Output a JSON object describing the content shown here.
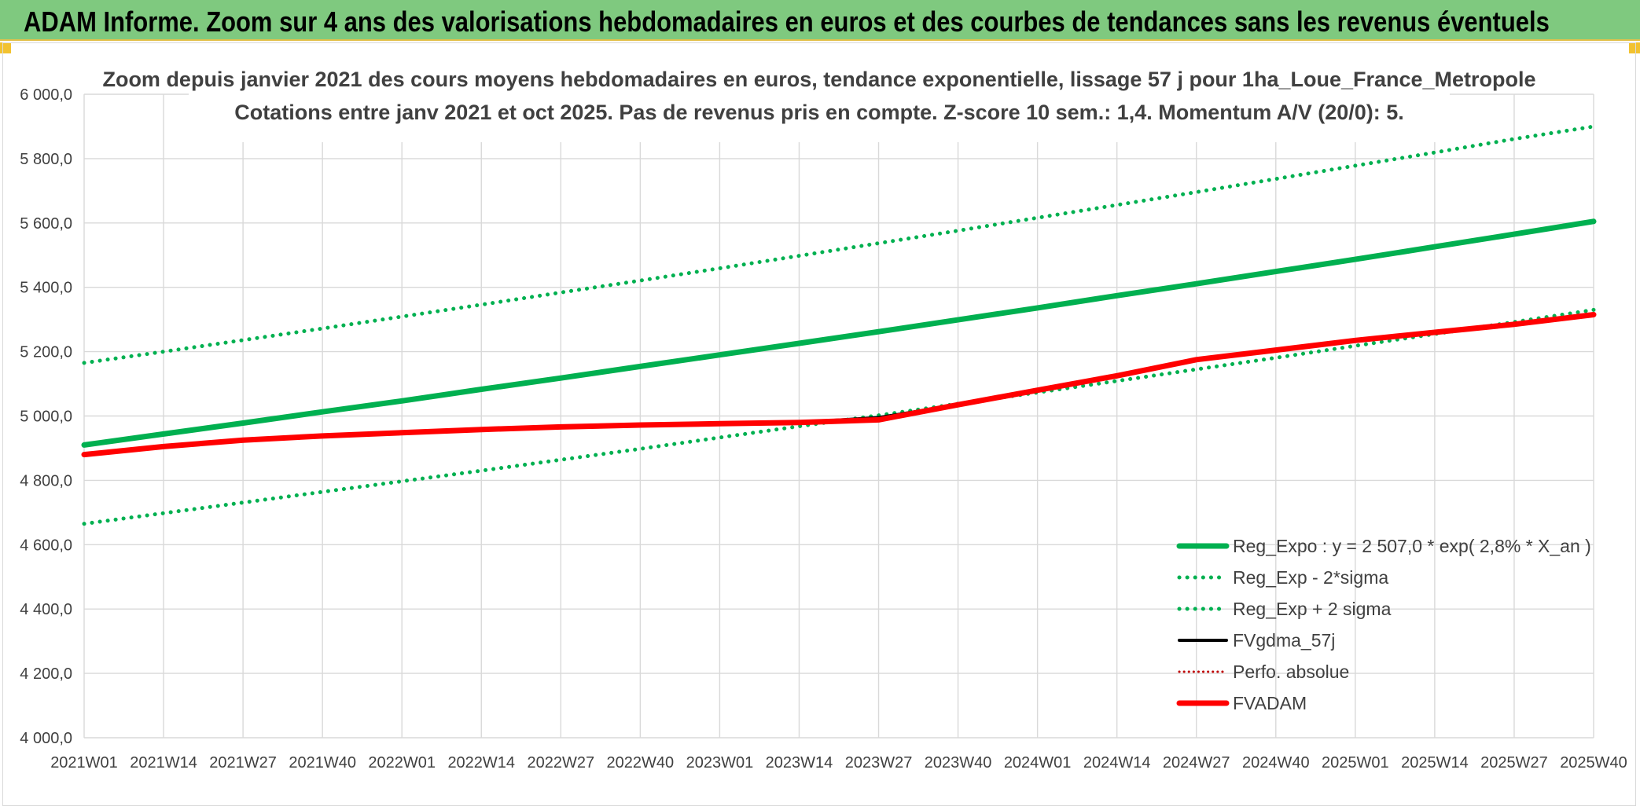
{
  "banner": {
    "title": "ADAM Informe. Zoom sur 4 ans des valorisations hebdomadaires en euros et des courbes de tendances sans les revenus éventuels"
  },
  "colors": {
    "banner_bg": "#7fc97f",
    "green": "#00b050",
    "red": "#ff0000",
    "black": "#000000",
    "grid": "#d9d9d9",
    "text": "#404040"
  },
  "chart_data": {
    "type": "line",
    "title_lines": [
      "Zoom depuis janvier 2021 des cours moyens hebdomadaires en euros, tendance exponentielle, lissage 57 j pour 1ha_Loue_France_Metropole",
      "Cotations entre janv 2021 et oct 2025. Pas de revenus pris en compte. Z-score 10 sem.: 1,4. Momentum A/V (20/0): 5."
    ],
    "xlabel": "",
    "ylabel": "",
    "ylim": [
      4000,
      6000
    ],
    "grid": true,
    "legend_position": "bottom-right",
    "y_ticks": [
      "6 000,0",
      "5 800,0",
      "5 600,0",
      "5 400,0",
      "5 200,0",
      "5 000,0",
      "4 800,0",
      "4 600,0",
      "4 400,0",
      "4 200,0",
      "4 000,0"
    ],
    "x": [
      "2021W01",
      "2021W14",
      "2021W27",
      "2021W40",
      "2022W01",
      "2022W14",
      "2022W27",
      "2022W40",
      "2023W01",
      "2023W14",
      "2023W27",
      "2023W40",
      "2024W01",
      "2024W14",
      "2024W27",
      "2024W40",
      "2025W01",
      "2025W14",
      "2025W27",
      "2025W40"
    ],
    "series": [
      {
        "name": "Reg_Expo : y = 2 507,0 * exp( 2,8% *  X_an )",
        "style": "solid-thick",
        "color": "#00b050",
        "values": [
          4910,
          4944,
          4978,
          5013,
          5047,
          5083,
          5118,
          5154,
          5190,
          5226,
          5262,
          5299,
          5336,
          5374,
          5411,
          5449,
          5487,
          5526,
          5565,
          5605
        ]
      },
      {
        "name": "Reg_Exp - 2*sigma",
        "style": "dotted",
        "color": "#00b050",
        "values": [
          4665,
          4698,
          4731,
          4764,
          4797,
          4830,
          4864,
          4898,
          4933,
          4968,
          5002,
          5038,
          5073,
          5109,
          5145,
          5181,
          5218,
          5255,
          5292,
          5330
        ]
      },
      {
        "name": "Reg_Exp + 2 sigma",
        "style": "dotted",
        "color": "#00b050",
        "values": [
          5165,
          5200,
          5236,
          5272,
          5309,
          5346,
          5384,
          5421,
          5459,
          5498,
          5537,
          5576,
          5616,
          5656,
          5696,
          5737,
          5778,
          5819,
          5861,
          5900
        ]
      },
      {
        "name": "FVgdma_57j",
        "style": "solid",
        "color": "#000000",
        "values": [
          4880,
          4905,
          4925,
          4938,
          4948,
          4958,
          4966,
          4972,
          4976,
          4980,
          4995,
          5035,
          5080,
          5125,
          5175,
          5205,
          5235,
          5260,
          5285,
          5315
        ]
      },
      {
        "name": "Perfo. absolue",
        "style": "dotted-thin",
        "color": "#c00000",
        "values": [
          4880,
          4905,
          4925,
          4938,
          4948,
          4958,
          4966,
          4972,
          4976,
          4980,
          4988,
          5035,
          5080,
          5125,
          5175,
          5205,
          5235,
          5260,
          5285,
          5315
        ]
      },
      {
        "name": "FVADAM",
        "style": "solid-thick",
        "color": "#ff0000",
        "values": [
          4880,
          4905,
          4925,
          4938,
          4948,
          4958,
          4966,
          4972,
          4976,
          4980,
          4988,
          5035,
          5080,
          5125,
          5175,
          5205,
          5235,
          5260,
          5285,
          5315
        ]
      }
    ]
  }
}
